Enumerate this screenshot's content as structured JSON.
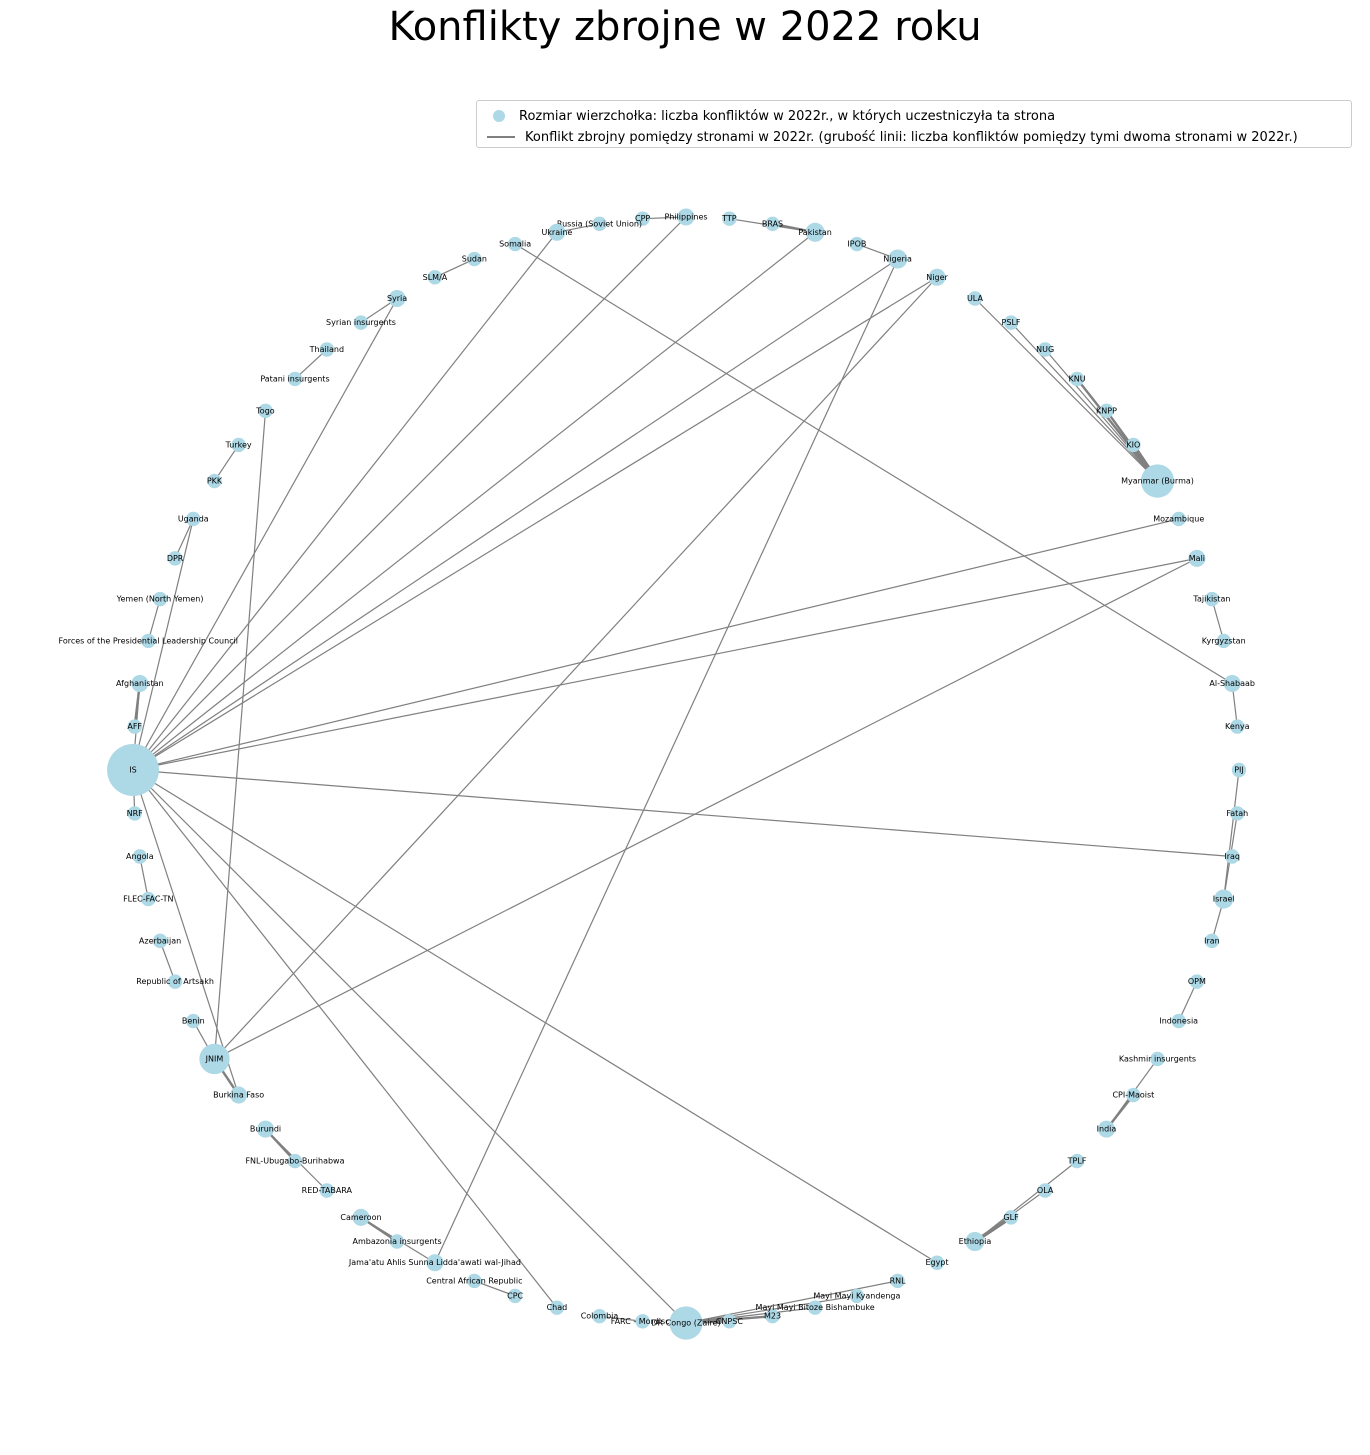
{
  "title": "Konflikty zbrojne w 2022 roku",
  "legend": {
    "node_label": "Rozmiar wierzchołka: liczba konfliktów w 2022r., w których uczestniczyła ta strona",
    "edge_label": "Konflikt zbrojny pomiędzy stronami w 2022r. (grubość linii: liczba konfliktów pomiędzy tymi dwoma stronami w 2022r.)"
  },
  "colors": {
    "node": "#add8e6",
    "edge": "#808080"
  },
  "nodes": [
    {
      "id": "IS",
      "label": "IS",
      "degree": 13
    },
    {
      "id": "NRF",
      "label": "NRF",
      "degree": 1
    },
    {
      "id": "Angola",
      "label": "Angola",
      "degree": 1
    },
    {
      "id": "FLEC-FAC-TN",
      "label": "FLEC-FAC-TN",
      "degree": 1
    },
    {
      "id": "Azerbaijan",
      "label": "Azerbaijan",
      "degree": 1
    },
    {
      "id": "Republic of Artsakh",
      "label": "Republic of Artsakh",
      "degree": 1
    },
    {
      "id": "Benin",
      "label": "Benin",
      "degree": 1
    },
    {
      "id": "JNIM",
      "label": "JNIM",
      "degree": 5
    },
    {
      "id": "Burkina Faso",
      "label": "Burkina Faso",
      "degree": 2
    },
    {
      "id": "Burundi",
      "label": "Burundi",
      "degree": 2
    },
    {
      "id": "FNL-Ubugabo-Burihabwa",
      "label": "FNL-Ubugabo-Burihabwa",
      "degree": 1
    },
    {
      "id": "RED-TABARA",
      "label": "RED-TABARA",
      "degree": 1
    },
    {
      "id": "Cameroon",
      "label": "Cameroon",
      "degree": 2
    },
    {
      "id": "Ambazonia insurgents",
      "label": "Ambazonia insurgents",
      "degree": 1
    },
    {
      "id": "Jama'atu Ahlis Sunna Lidda'awati wal-Jihad",
      "label": "Jama'atu Ahlis Sunna Lidda'awati wal-Jihad",
      "degree": 2
    },
    {
      "id": "Central African Republic",
      "label": "Central African Republic",
      "degree": 1
    },
    {
      "id": "CPC",
      "label": "CPC",
      "degree": 1
    },
    {
      "id": "Chad",
      "label": "Chad",
      "degree": 1
    },
    {
      "id": "Colombia",
      "label": "Colombia",
      "degree": 1
    },
    {
      "id": "FARC - Mordisco",
      "label": "FARC - Mordisco",
      "degree": 1
    },
    {
      "id": "DR Congo (Zaire)",
      "label": "DR Congo (Zaire)",
      "degree": 6
    },
    {
      "id": "CNPSC",
      "label": "CNPSC",
      "degree": 1
    },
    {
      "id": "M23",
      "label": "M23",
      "degree": 1
    },
    {
      "id": "Mayi Mayi Bitoze Bishambuke",
      "label": "Mayi Mayi Bitoze Bishambuke",
      "degree": 1
    },
    {
      "id": "Mayi Mayi Kyandenga",
      "label": "Mayi Mayi Kyandenga",
      "degree": 1
    },
    {
      "id": "RNL",
      "label": "RNL",
      "degree": 1
    },
    {
      "id": "Egypt",
      "label": "Egypt",
      "degree": 1
    },
    {
      "id": "Ethiopia",
      "label": "Ethiopia",
      "degree": 3
    },
    {
      "id": "GLF",
      "label": "GLF",
      "degree": 1
    },
    {
      "id": "OLA",
      "label": "OLA",
      "degree": 1
    },
    {
      "id": "TPLF",
      "label": "TPLF",
      "degree": 1
    },
    {
      "id": "India",
      "label": "India",
      "degree": 2
    },
    {
      "id": "CPI-Maoist",
      "label": "CPI-Maoist",
      "degree": 1
    },
    {
      "id": "Kashmir insurgents",
      "label": "Kashmir insurgents",
      "degree": 1
    },
    {
      "id": "Indonesia",
      "label": "Indonesia",
      "degree": 1
    },
    {
      "id": "OPM",
      "label": "OPM",
      "degree": 1
    },
    {
      "id": "Iran",
      "label": "Iran",
      "degree": 1
    },
    {
      "id": "Israel",
      "label": "Israel",
      "degree": 3
    },
    {
      "id": "Iraq",
      "label": "Iraq",
      "degree": 1
    },
    {
      "id": "Fatah",
      "label": "Fatah",
      "degree": 1
    },
    {
      "id": "PIJ",
      "label": "PIJ",
      "degree": 1
    },
    {
      "id": "Kenya",
      "label": "Kenya",
      "degree": 1
    },
    {
      "id": "Al-Shabaab",
      "label": "Al-Shabaab",
      "degree": 2
    },
    {
      "id": "Kyrgyzstan",
      "label": "Kyrgyzstan",
      "degree": 1
    },
    {
      "id": "Tajikistan",
      "label": "Tajikistan",
      "degree": 1
    },
    {
      "id": "Mali",
      "label": "Mali",
      "degree": 2
    },
    {
      "id": "Mozambique",
      "label": "Mozambique",
      "degree": 1
    },
    {
      "id": "Myanmar (Burma)",
      "label": "Myanmar (Burma)",
      "degree": 6
    },
    {
      "id": "KIO",
      "label": "KIO",
      "degree": 1
    },
    {
      "id": "KNPP",
      "label": "KNPP",
      "degree": 1
    },
    {
      "id": "KNU",
      "label": "KNU",
      "degree": 1
    },
    {
      "id": "NUG",
      "label": "NUG",
      "degree": 1
    },
    {
      "id": "PSLF",
      "label": "PSLF",
      "degree": 1
    },
    {
      "id": "ULA",
      "label": "ULA",
      "degree": 1
    },
    {
      "id": "Niger",
      "label": "Niger",
      "degree": 2
    },
    {
      "id": "Nigeria",
      "label": "Nigeria",
      "degree": 3
    },
    {
      "id": "IPOB",
      "label": "IPOB",
      "degree": 1
    },
    {
      "id": "Pakistan",
      "label": "Pakistan",
      "degree": 3
    },
    {
      "id": "BRAS",
      "label": "BRAS",
      "degree": 1
    },
    {
      "id": "TTP",
      "label": "TTP",
      "degree": 1
    },
    {
      "id": "Philippines",
      "label": "Philippines",
      "degree": 2
    },
    {
      "id": "CPP",
      "label": "CPP",
      "degree": 1
    },
    {
      "id": "Russia (Soviet Union)",
      "label": "Russia (Soviet Union)",
      "degree": 1
    },
    {
      "id": "Ukraine",
      "label": "Ukraine",
      "degree": 2
    },
    {
      "id": "Somalia",
      "label": "Somalia",
      "degree": 1
    },
    {
      "id": "Sudan",
      "label": "Sudan",
      "degree": 1
    },
    {
      "id": "SLM/A",
      "label": "SLM/A",
      "degree": 1
    },
    {
      "id": "Syria",
      "label": "Syria",
      "degree": 2
    },
    {
      "id": "Syrian insurgents",
      "label": "Syrian insurgents",
      "degree": 1
    },
    {
      "id": "Thailand",
      "label": "Thailand",
      "degree": 1
    },
    {
      "id": "Patani insurgents",
      "label": "Patani insurgents",
      "degree": 1
    },
    {
      "id": "Togo",
      "label": "Togo",
      "degree": 1
    },
    {
      "id": "Turkey",
      "label": "Turkey",
      "degree": 1
    },
    {
      "id": "PKK",
      "label": "PKK",
      "degree": 1
    },
    {
      "id": "Uganda",
      "label": "Uganda",
      "degree": 1
    },
    {
      "id": "DPR",
      "label": "DPR",
      "degree": 1
    },
    {
      "id": "Yemen (North Yemen)",
      "label": "Yemen (North Yemen)",
      "degree": 1
    },
    {
      "id": "Forces of the Presidential Leadership Council",
      "label": "Forces of the Presidential Leadership Council",
      "degree": 1
    },
    {
      "id": "Afghanistan",
      "label": "Afghanistan",
      "degree": 2
    },
    {
      "id": "AFF",
      "label": "AFF",
      "degree": 1
    }
  ],
  "edges": [
    {
      "source": "IS",
      "target": "Afghanistan",
      "weight": 1
    },
    {
      "source": "Afghanistan",
      "target": "AFF",
      "weight": 2
    },
    {
      "source": "IS",
      "target": "Uganda",
      "weight": 1
    },
    {
      "source": "IS",
      "target": "Syria",
      "weight": 1
    },
    {
      "source": "IS",
      "target": "Ukraine",
      "weight": 1
    },
    {
      "source": "IS",
      "target": "Philippines",
      "weight": 1
    },
    {
      "source": "IS",
      "target": "Pakistan",
      "weight": 1
    },
    {
      "source": "IS",
      "target": "Nigeria",
      "weight": 1
    },
    {
      "source": "IS",
      "target": "Niger",
      "weight": 1
    },
    {
      "source": "IS",
      "target": "Mozambique",
      "weight": 1
    },
    {
      "source": "IS",
      "target": "Mali",
      "weight": 1
    },
    {
      "source": "IS",
      "target": "Iraq",
      "weight": 1
    },
    {
      "source": "IS",
      "target": "Egypt",
      "weight": 1
    },
    {
      "source": "IS",
      "target": "DR Congo (Zaire)",
      "weight": 1
    },
    {
      "source": "IS",
      "target": "Chad",
      "weight": 1
    },
    {
      "source": "IS",
      "target": "Burkina Faso",
      "weight": 1
    },
    {
      "source": "Somalia",
      "target": "Al-Shabaab",
      "weight": 1
    },
    {
      "source": "Kenya",
      "target": "Al-Shabaab",
      "weight": 1
    },
    {
      "source": "JNIM",
      "target": "Togo",
      "weight": 1
    },
    {
      "source": "JNIM",
      "target": "Benin",
      "weight": 1
    },
    {
      "source": "JNIM",
      "target": "Burkina Faso",
      "weight": 2
    },
    {
      "source": "JNIM",
      "target": "Niger",
      "weight": 1
    },
    {
      "source": "JNIM",
      "target": "Mali",
      "weight": 1
    },
    {
      "source": "Nigeria",
      "target": "Jama'atu Ahlis Sunna Lidda'awati wal-Jihad",
      "weight": 1
    },
    {
      "source": "Nigeria",
      "target": "IPOB",
      "weight": 1
    },
    {
      "source": "Cameroon",
      "target": "Ambazonia insurgents",
      "weight": 2
    },
    {
      "source": "Cameroon",
      "target": "Jama'atu Ahlis Sunna Lidda'awati wal-Jihad",
      "weight": 1
    },
    {
      "source": "Central African Republic",
      "target": "CPC",
      "weight": 1
    },
    {
      "source": "Colombia",
      "target": "FARC - Mordisco",
      "weight": 1
    },
    {
      "source": "DR Congo (Zaire)",
      "target": "CNPSC",
      "weight": 2
    },
    {
      "source": "DR Congo (Zaire)",
      "target": "M23",
      "weight": 2
    },
    {
      "source": "DR Congo (Zaire)",
      "target": "Mayi Mayi Bitoze Bishambuke",
      "weight": 1
    },
    {
      "source": "DR Congo (Zaire)",
      "target": "Mayi Mayi Kyandenga",
      "weight": 1
    },
    {
      "source": "DR Congo (Zaire)",
      "target": "RNL",
      "weight": 1
    },
    {
      "source": "Ethiopia",
      "target": "GLF",
      "weight": 3
    },
    {
      "source": "Ethiopia",
      "target": "OLA",
      "weight": 1
    },
    {
      "source": "Ethiopia",
      "target": "TPLF",
      "weight": 1
    },
    {
      "source": "India",
      "target": "CPI-Maoist",
      "weight": 2
    },
    {
      "source": "India",
      "target": "Kashmir insurgents",
      "weight": 1
    },
    {
      "source": "Indonesia",
      "target": "OPM",
      "weight": 1
    },
    {
      "source": "Israel",
      "target": "Iran",
      "weight": 1
    },
    {
      "source": "Israel",
      "target": "Fatah",
      "weight": 1
    },
    {
      "source": "Israel",
      "target": "PIJ",
      "weight": 1
    },
    {
      "source": "Tajikistan",
      "target": "Kyrgyzstan",
      "weight": 1
    },
    {
      "source": "Myanmar (Burma)",
      "target": "KIO",
      "weight": 3
    },
    {
      "source": "Myanmar (Burma)",
      "target": "KNPP",
      "weight": 2
    },
    {
      "source": "Myanmar (Burma)",
      "target": "KNU",
      "weight": 2
    },
    {
      "source": "Myanmar (Burma)",
      "target": "NUG",
      "weight": 1
    },
    {
      "source": "Myanmar (Burma)",
      "target": "PSLF",
      "weight": 1
    },
    {
      "source": "Myanmar (Burma)",
      "target": "ULA",
      "weight": 1
    },
    {
      "source": "Pakistan",
      "target": "BRAS",
      "weight": 2
    },
    {
      "source": "Pakistan",
      "target": "TTP",
      "weight": 1
    },
    {
      "source": "Philippines",
      "target": "CPP",
      "weight": 1
    },
    {
      "source": "Ukraine",
      "target": "Russia (Soviet Union)",
      "weight": 1
    },
    {
      "source": "Sudan",
      "target": "SLM/A",
      "weight": 1
    },
    {
      "source": "Syria",
      "target": "Syrian insurgents",
      "weight": 1
    },
    {
      "source": "Thailand",
      "target": "Patani insurgents",
      "weight": 1
    },
    {
      "source": "Turkey",
      "target": "PKK",
      "weight": 1
    },
    {
      "source": "Uganda",
      "target": "DPR",
      "weight": 1
    },
    {
      "source": "Yemen (North Yemen)",
      "target": "Forces of the Presidential Leadership Council",
      "weight": 1
    },
    {
      "source": "Angola",
      "target": "FLEC-FAC-TN",
      "weight": 1
    },
    {
      "source": "Azerbaijan",
      "target": "Republic of Artsakh",
      "weight": 1
    },
    {
      "source": "Burundi",
      "target": "FNL-Ubugabo-Burihabwa",
      "weight": 2
    },
    {
      "source": "Burundi",
      "target": "RED-TABARA",
      "weight": 1
    },
    {
      "source": "IS",
      "target": "NRF",
      "weight": 1
    }
  ]
}
